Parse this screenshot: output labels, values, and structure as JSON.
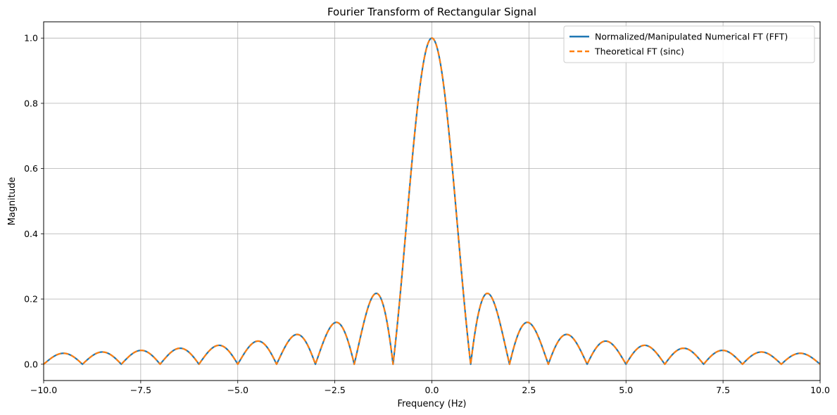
{
  "chart_data": {
    "type": "line",
    "title": "Fourier Transform of Rectangular Signal",
    "xlabel": "Frequency (Hz)",
    "ylabel": "Magnitude",
    "xlim": [
      -10,
      10
    ],
    "ylim": [
      -0.05,
      1.05
    ],
    "xticks": [
      -10,
      -7.5,
      -5,
      -2.5,
      0,
      2.5,
      5,
      7.5,
      10
    ],
    "xtick_labels": [
      "−10.0",
      "−7.5",
      "−5.0",
      "−2.5",
      "0.0",
      "2.5",
      "5.0",
      "7.5",
      "10.0"
    ],
    "yticks": [
      0,
      0.2,
      0.4,
      0.6,
      0.8,
      1.0
    ],
    "ytick_labels": [
      "0.0",
      "0.2",
      "0.4",
      "0.6",
      "0.8",
      "1.0"
    ],
    "grid": true,
    "legend_position": "top-right",
    "function": "|sinc(f)| = |sin(πf)/(πf)|",
    "x": [
      -10,
      -9.5,
      -9,
      -8.5,
      -8,
      -7.5,
      -7,
      -6.5,
      -6,
      -5.5,
      -5,
      -4.5,
      -4,
      -3.5,
      -3,
      -2.5,
      -2,
      -1.5,
      -1,
      -0.5,
      0,
      0.5,
      1,
      1.5,
      2,
      2.5,
      3,
      3.5,
      4,
      4.5,
      5,
      5.5,
      6,
      6.5,
      7,
      7.5,
      8,
      8.5,
      9,
      9.5,
      10
    ],
    "series": [
      {
        "name": "Normalized/Manipulated Numerical FT (FFT)",
        "color": "#1f77b4",
        "style": "solid",
        "values": [
          0,
          0.0335,
          0,
          0.0374,
          0,
          0.0424,
          0,
          0.049,
          0,
          0.0579,
          0,
          0.0707,
          0,
          0.0909,
          0,
          0.1273,
          0,
          0.2122,
          0,
          0.6366,
          1.0,
          0.6366,
          0,
          0.2122,
          0,
          0.1273,
          0,
          0.0909,
          0,
          0.0707,
          0,
          0.0579,
          0,
          0.049,
          0,
          0.0424,
          0,
          0.0374,
          0,
          0.0335,
          0
        ]
      },
      {
        "name": "Theoretical FT (sinc)",
        "color": "#ff7f0e",
        "style": "dashed",
        "values": [
          0,
          0.0335,
          0,
          0.0374,
          0,
          0.0424,
          0,
          0.049,
          0,
          0.0579,
          0,
          0.0707,
          0,
          0.0909,
          0,
          0.1273,
          0,
          0.2122,
          0,
          0.6366,
          1.0,
          0.6366,
          0,
          0.2122,
          0,
          0.1273,
          0,
          0.0909,
          0,
          0.0707,
          0,
          0.0579,
          0,
          0.049,
          0,
          0.0424,
          0,
          0.0374,
          0,
          0.0335,
          0
        ]
      }
    ]
  }
}
